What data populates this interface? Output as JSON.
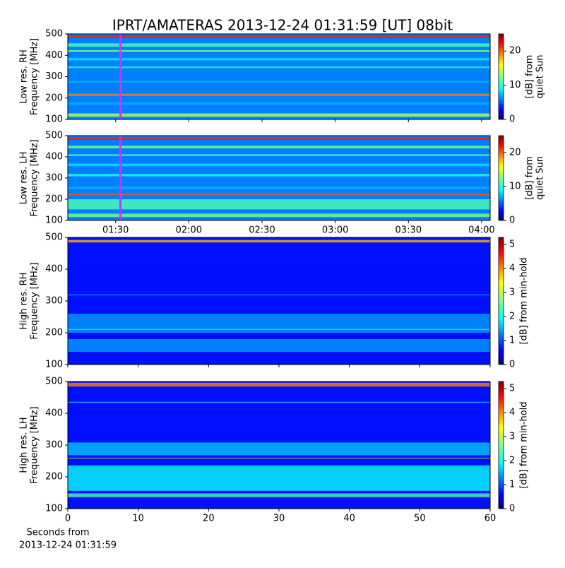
{
  "chart_data": [
    {
      "type": "heatmap",
      "title": "IPRT/AMATERAS 2013-12-24 01:31:59 [UT]   08bit",
      "ylabel": [
        "Low res. RH",
        "Frequency [MHz]"
      ],
      "ylim": [
        100,
        500
      ],
      "yticks": [
        100,
        200,
        300,
        400,
        500
      ],
      "sharex": 1,
      "marker_x": 91.98,
      "marker_color": "#cc33ff",
      "colormap": "jet",
      "colorbar": {
        "label": [
          "[dB] from",
          "quiet Sun"
        ],
        "zlim": [
          0,
          25
        ],
        "ticks": [
          0,
          10,
          20
        ]
      }
    },
    {
      "type": "heatmap",
      "ylabel": [
        "Low res. LH",
        "Frequency [MHz]"
      ],
      "ylim": [
        100,
        500
      ],
      "yticks": [
        100,
        200,
        300,
        400,
        500
      ],
      "xlim": [
        70.4,
        243.5
      ],
      "xticks": [
        {
          "value": 90,
          "label": "01:30"
        },
        {
          "value": 120,
          "label": "02:00"
        },
        {
          "value": 150,
          "label": "02:30"
        },
        {
          "value": 180,
          "label": "03:00"
        },
        {
          "value": 210,
          "label": "03:30"
        },
        {
          "value": 240,
          "label": "04:00"
        }
      ],
      "marker_x": 91.98,
      "marker_color": "#cc33ff",
      "colormap": "jet",
      "colorbar": {
        "label": [
          "[dB] from",
          "quiet Sun"
        ],
        "zlim": [
          0,
          25
        ],
        "ticks": [
          0,
          10,
          20
        ]
      }
    },
    {
      "type": "heatmap",
      "ylabel": [
        "High res. RH",
        "Frequency [MHz]"
      ],
      "ylim": [
        100,
        500
      ],
      "yticks": [
        100,
        200,
        300,
        400,
        500
      ],
      "sharex": 3,
      "colormap": "jet",
      "colorbar": {
        "label": [
          "[dB] from min-hold"
        ],
        "zlim": [
          0,
          5.3
        ],
        "ticks": [
          0,
          1,
          2,
          3,
          4,
          5
        ]
      }
    },
    {
      "type": "heatmap",
      "ylabel": [
        "High res. LH",
        "Frequency [MHz]"
      ],
      "ylim": [
        100,
        500
      ],
      "yticks": [
        100,
        200,
        300,
        400,
        500
      ],
      "xlim": [
        0,
        60
      ],
      "xticks": [
        0,
        10,
        20,
        30,
        40,
        50,
        60
      ],
      "xlabel": [
        "Seconds from",
        "2013-12-24 01:31:59"
      ],
      "colormap": "jet",
      "colorbar": {
        "label": [
          "[dB] from min-hold"
        ],
        "zlim": [
          0,
          5.3
        ],
        "ticks": [
          0,
          1,
          2,
          3,
          4,
          5
        ]
      }
    }
  ]
}
